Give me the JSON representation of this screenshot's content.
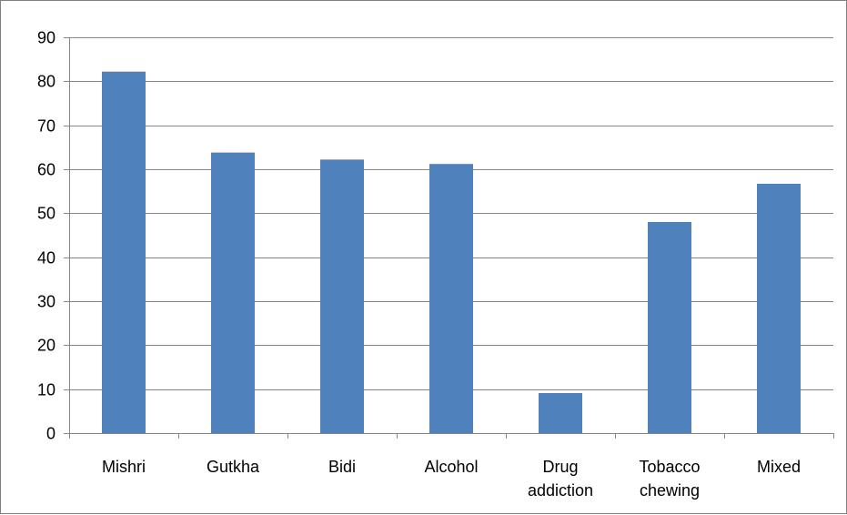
{
  "chart_data": {
    "type": "bar",
    "categories": [
      [
        "Mishri"
      ],
      [
        "Gutkha"
      ],
      [
        "Bidi"
      ],
      [
        "Alcohol"
      ],
      [
        "Drug",
        "addiction"
      ],
      [
        "Tobacco",
        "chewing"
      ],
      [
        "Mixed"
      ]
    ],
    "values": [
      82.2,
      63.8,
      62.2,
      61.2,
      9.1,
      48.0,
      56.7
    ],
    "title": "",
    "xlabel": "",
    "ylabel": "",
    "ylim": [
      0,
      90
    ],
    "yticks": [
      "0",
      "10",
      "20",
      "30",
      "40",
      "50",
      "60",
      "70",
      "80",
      "90"
    ],
    "grid": true,
    "legend": "none",
    "colors": {
      "bar": "#4F81BD",
      "grid": "#868686",
      "axis": "#868686"
    }
  }
}
